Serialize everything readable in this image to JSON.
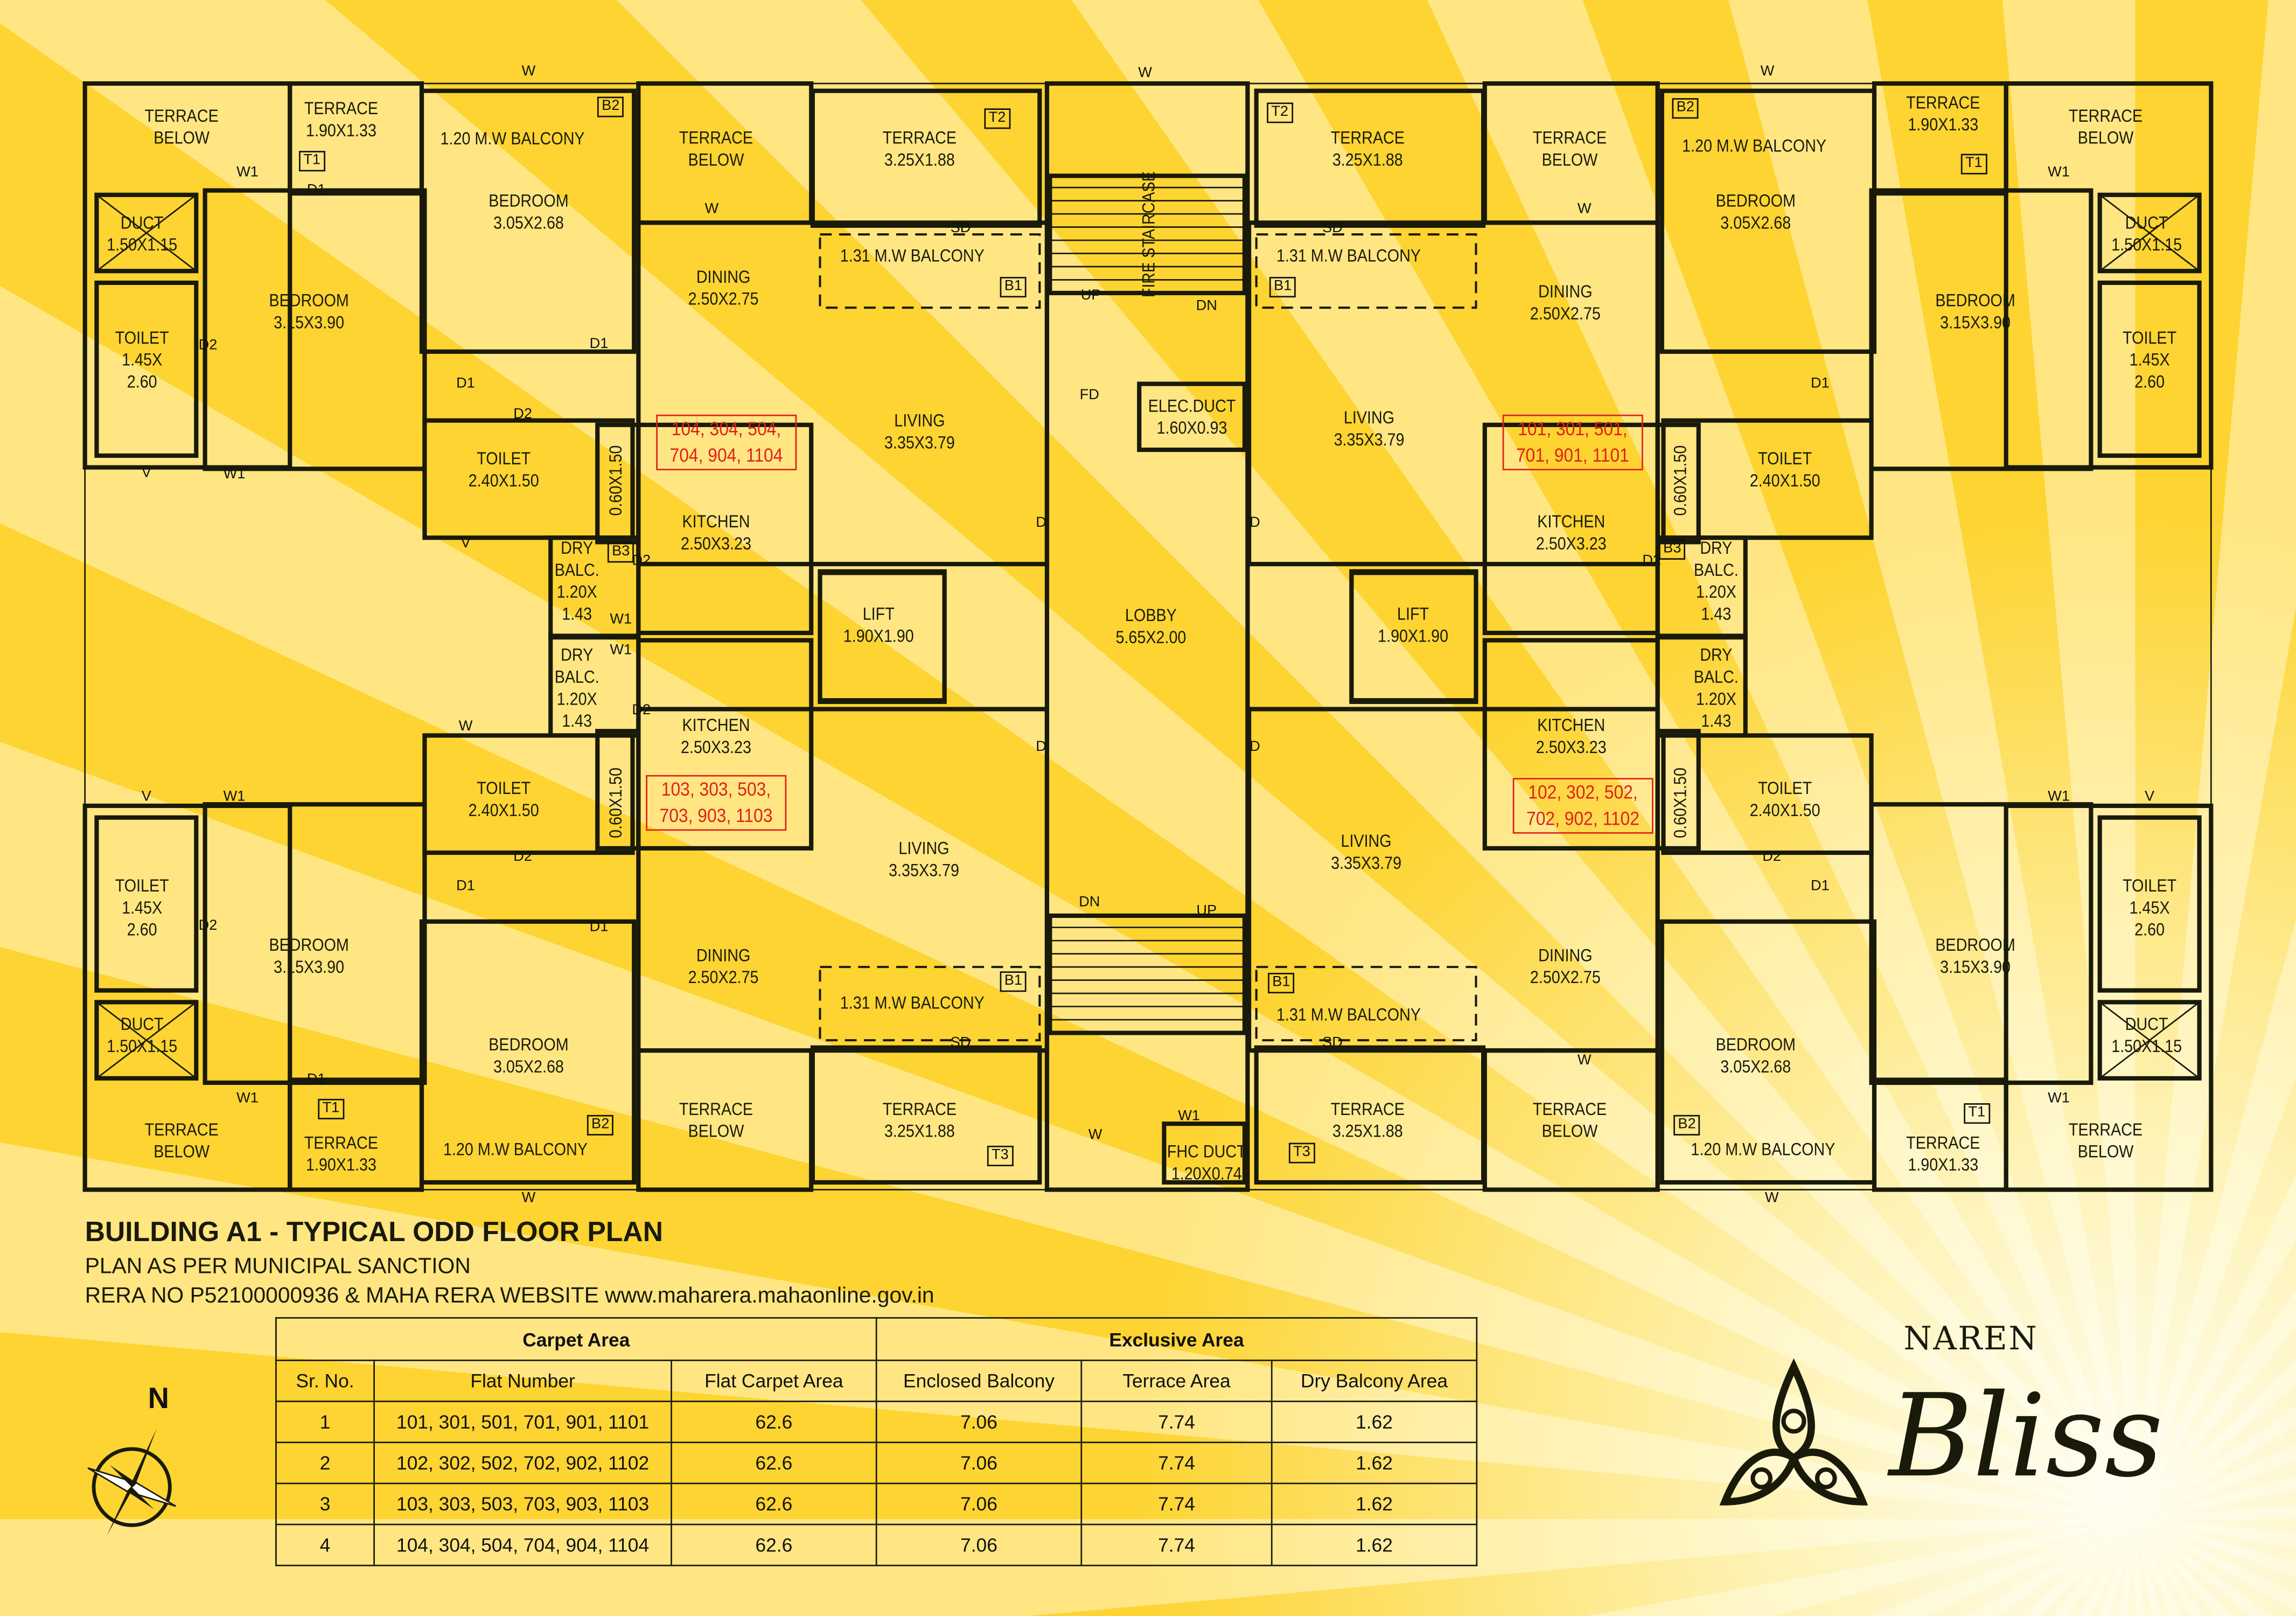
{
  "plan": {
    "rooms": [
      {
        "lines": [
          "TERRACE",
          "BELOW"
        ]
      },
      {
        "lines": [
          "TERRACE",
          "1.90X1.33"
        ]
      },
      {
        "lines": [
          "1.20 M.W BALCONY"
        ]
      },
      {
        "lines": [
          "BEDROOM",
          "3.05X2.68"
        ]
      },
      {
        "lines": [
          "TERRACE",
          "BELOW"
        ]
      },
      {
        "lines": [
          "TERRACE",
          "3.25X1.88"
        ]
      },
      {
        "lines": [
          "DUCT",
          "1.50X1.15"
        ]
      },
      {
        "lines": [
          "BEDROOM",
          "3.15X3.90"
        ]
      },
      {
        "lines": [
          "TOILET",
          "1.45X",
          "2.60"
        ]
      },
      {
        "lines": [
          "DINING",
          "2.50X2.75"
        ]
      },
      {
        "lines": [
          "1.31 M.W BALCONY"
        ]
      },
      {
        "lines": [
          "LIVING",
          "3.35X3.79"
        ]
      },
      {
        "lines": [
          "TOILET",
          "2.40X1.50"
        ]
      },
      {
        "lines": [
          "0.60X1.50"
        ]
      },
      {
        "lines": [
          "KITCHEN",
          "2.50X3.23"
        ]
      },
      {
        "lines": [
          "DRY",
          "BALC.",
          "1.20X",
          "1.43"
        ]
      },
      {
        "lines": [
          "LIFT",
          "1.90X1.90"
        ]
      },
      {
        "lines": [
          "FIRE STAIRCASE"
        ]
      },
      {
        "lines": [
          "ELEC.DUCT",
          "1.60X0.93"
        ]
      },
      {
        "lines": [
          "LOBBY",
          "5.65X2.00"
        ]
      },
      {
        "lines": [
          "FHC DUCT",
          "1.20X0.74"
        ]
      },
      {
        "lines": [
          "TERRACE",
          "3.25X1.88"
        ]
      },
      {
        "lines": [
          "TERRACE",
          "BELOW"
        ]
      },
      {
        "lines": [
          "1.20 M.W BALCONY"
        ]
      },
      {
        "lines": [
          "TERRACE",
          "1.90X1.33"
        ]
      },
      {
        "lines": [
          "TERRACE",
          "BELOW"
        ]
      },
      {
        "lines": [
          "BEDROOM",
          "3.05X2.68"
        ]
      },
      {
        "lines": [
          "DUCT",
          "1.50X1.15"
        ]
      },
      {
        "lines": [
          "BEDROOM",
          "3.15X3.90"
        ]
      },
      {
        "lines": [
          "TOILET",
          "1.45X",
          "2.60"
        ]
      },
      {
        "lines": [
          "DINING",
          "2.50X2.75"
        ]
      },
      {
        "lines": [
          "1.31 M.W BALCONY"
        ]
      },
      {
        "lines": [
          "LIVING",
          "3.35X3.79"
        ]
      },
      {
        "lines": [
          "TOILET",
          "2.40X1.50"
        ]
      },
      {
        "lines": [
          "0.60X1.50"
        ]
      },
      {
        "lines": [
          "KITCHEN",
          "2.50X3.23"
        ]
      },
      {
        "lines": [
          "DRY",
          "BALC.",
          "1.20X",
          "1.43"
        ]
      },
      {
        "lines": [
          "LIFT",
          "1.90X1.90"
        ]
      },
      {
        "lines": [
          "DRY",
          "BALC.",
          "1.20X",
          "1.43"
        ]
      },
      {
        "lines": [
          "KITCHEN",
          "2.50X3.23"
        ]
      },
      {
        "lines": [
          "TOILET",
          "2.40X1.50"
        ]
      },
      {
        "lines": [
          "0.60X1.50"
        ]
      },
      {
        "lines": [
          "TOILET",
          "1.45X",
          "2.60"
        ]
      },
      {
        "lines": [
          "BEDROOM",
          "3.15X3.90"
        ]
      },
      {
        "lines": [
          "LIVING",
          "3.35X3.79"
        ]
      },
      {
        "lines": [
          "DINING",
          "2.50X2.75"
        ]
      },
      {
        "lines": [
          "1.31 M.W BALCONY"
        ]
      },
      {
        "lines": [
          "BEDROOM",
          "3.05X2.68"
        ]
      },
      {
        "lines": [
          "DUCT",
          "1.50X1.15"
        ]
      },
      {
        "lines": [
          "TERRACE",
          "BELOW"
        ]
      },
      {
        "lines": [
          "TERRACE",
          "1.90X1.33"
        ]
      },
      {
        "lines": [
          "1.20 M.W BALCONY"
        ]
      },
      {
        "lines": [
          "TERRACE",
          "BELOW"
        ]
      },
      {
        "lines": [
          "TERRACE",
          "3.25X1.88"
        ]
      },
      {
        "lines": [
          "DRY",
          "BALC.",
          "1.20X",
          "1.43"
        ]
      },
      {
        "lines": [
          "KITCHEN",
          "2.50X3.23"
        ]
      },
      {
        "lines": [
          "TOILET",
          "2.40X1.50"
        ]
      },
      {
        "lines": [
          "0.60X1.50"
        ]
      },
      {
        "lines": [
          "TOILET",
          "1.45X",
          "2.60"
        ]
      },
      {
        "lines": [
          "BEDROOM",
          "3.15X3.90"
        ]
      },
      {
        "lines": [
          "LIVING",
          "3.35X3.79"
        ]
      },
      {
        "lines": [
          "DINING",
          "2.50X2.75"
        ]
      },
      {
        "lines": [
          "1.31 M.W BALCONY"
        ]
      },
      {
        "lines": [
          "BEDROOM",
          "3.05X2.68"
        ]
      },
      {
        "lines": [
          "DUCT",
          "1.50X1.15"
        ]
      },
      {
        "lines": [
          "TERRACE",
          "BELOW"
        ]
      },
      {
        "lines": [
          "TERRACE",
          "1.90X1.33"
        ]
      },
      {
        "lines": [
          "1.20 M.W BALCONY"
        ]
      },
      {
        "lines": [
          "TERRACE",
          "BELOW"
        ]
      },
      {
        "lines": [
          "TERRACE",
          "3.25X1.88"
        ]
      }
    ],
    "tags": [
      "T1",
      "B2",
      "T2",
      "B1",
      "B3",
      "T2",
      "B2",
      "T1",
      "B1",
      "B3",
      "B1",
      "T1",
      "B2",
      "T3",
      "B1",
      "B2",
      "T1",
      "T3"
    ],
    "markers": [
      "W",
      "W",
      "W",
      "W1",
      "D1",
      "D1",
      "D2",
      "D1",
      "D2",
      "V",
      "W1",
      "V",
      "D2",
      "W1",
      "W",
      "SD",
      "UP",
      "DN",
      "FD",
      "D",
      "D",
      "D",
      "D",
      "DN",
      "UP",
      "W",
      "W",
      "W1",
      "W1",
      "D2",
      "D1",
      "D2",
      "SD",
      "W",
      "W1",
      "D1",
      "D1",
      "D2",
      "V",
      "W1",
      "D1",
      "W1",
      "D2",
      "W",
      "SD",
      "W",
      "D1",
      "D2",
      "W1",
      "V",
      "W1",
      "SD",
      "W"
    ],
    "flat_groups": [
      {
        "lines": [
          "104, 304, 504,",
          "704, 904, 1104"
        ]
      },
      {
        "lines": [
          "101, 301, 501,",
          "701, 901, 1101"
        ]
      },
      {
        "lines": [
          "103, 303, 503,",
          "703, 903, 1103"
        ]
      },
      {
        "lines": [
          "102, 302, 502,",
          "702, 902, 1102"
        ]
      }
    ]
  },
  "heading": {
    "title": "BUILDING A1 - TYPICAL ODD FLOOR PLAN",
    "subtitle": "PLAN AS PER MUNICIPAL SANCTION",
    "rera": "RERA NO P52100000936 & MAHA RERA WEBSITE www.maharera.mahaonline.gov.in"
  },
  "table": {
    "group_headers": [
      "Carpet Area",
      "Exclusive Area"
    ],
    "columns": [
      "Sr. No.",
      "Flat Number",
      "Flat Carpet Area",
      "Enclosed Balcony",
      "Terrace Area",
      "Dry Balcony Area"
    ],
    "rows": [
      [
        "1",
        "101, 301, 501, 701, 901, 1101",
        "62.6",
        "7.06",
        "7.74",
        "1.62"
      ],
      [
        "2",
        "102, 302, 502, 702, 902, 1102",
        "62.6",
        "7.06",
        "7.74",
        "1.62"
      ],
      [
        "3",
        "103, 303, 503, 703, 903, 1103",
        "62.6",
        "7.06",
        "7.74",
        "1.62"
      ],
      [
        "4",
        "104, 304, 504, 704, 904, 1104",
        "62.6",
        "7.06",
        "7.74",
        "1.62"
      ]
    ]
  },
  "compass": {
    "label": "N",
    "icon": "compass-rose-icon"
  },
  "logo": {
    "line1": "NAREN",
    "line2": "Bliss",
    "icon": "trefoil-swirl-icon"
  },
  "colors": {
    "background_yellow": "#fdd63a",
    "ray_light": "#ffe682",
    "wall": "#1a1a0a",
    "flat_highlight": "#e0201c"
  }
}
